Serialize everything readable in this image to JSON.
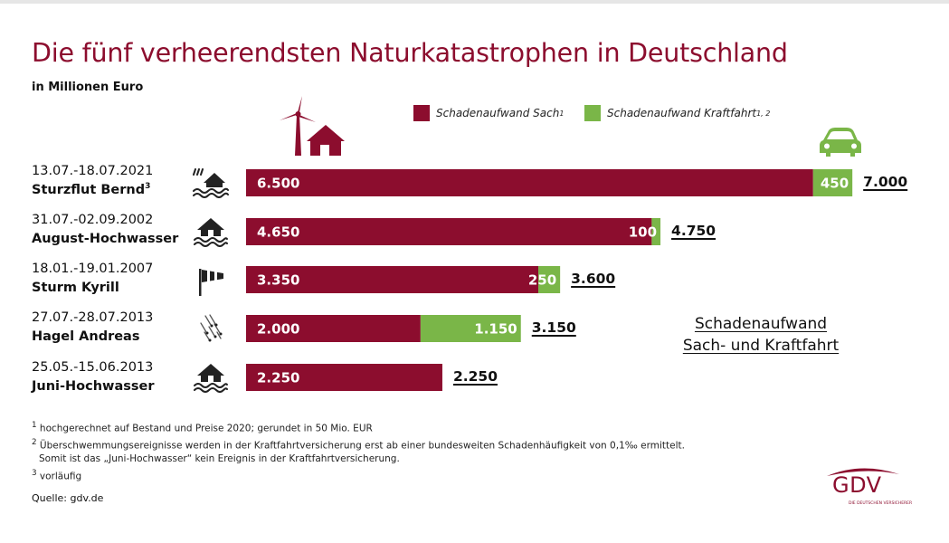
{
  "colors": {
    "sach": "#8c0d2e",
    "kraftfahrt": "#7ab648",
    "title": "#8c0d2e"
  },
  "header": {
    "title": "Die fünf verheerendsten Naturkatastrophen in Deutschland",
    "subtitle": "in Millionen Euro"
  },
  "legend": {
    "sach": {
      "label": "Schadenaufwand Sach",
      "sup": "1"
    },
    "kraftfahrt": {
      "label": "Schadenaufwand Kraftfahrt",
      "sup": "1, 2"
    }
  },
  "icons": {
    "sach_header": "wind-turbine-house-icon",
    "kraftfahrt_header": "car-icon"
  },
  "chart_data": {
    "type": "bar",
    "orientation": "horizontal",
    "stacked": true,
    "title": "Die fünf verheerendsten Naturkatastrophen in Deutschland",
    "unit": "in Millionen Euro",
    "categories": [
      "Sturzflut Bernd",
      "August-Hochwasser",
      "Sturm Kyrill",
      "Hagel Andreas",
      "Juni-Hochwasser"
    ],
    "series": [
      {
        "name": "Schadenaufwand Sach",
        "values": [
          6500,
          4650,
          3350,
          2000,
          2250
        ]
      },
      {
        "name": "Schadenaufwand Kraftfahrt",
        "values": [
          450,
          100,
          250,
          1150,
          0
        ]
      }
    ],
    "xlim": [
      0,
      7000
    ],
    "grid": false,
    "legend_position": "top-right"
  },
  "rows": [
    {
      "date": "13.07.-18.07.2021",
      "name": "Sturzflut Bernd",
      "sup": "3",
      "icon": "flood-storm-icon",
      "sach": 6500,
      "kfz": 450,
      "sach_label": "6.500",
      "kfz_label": "450",
      "total_label": "7.000"
    },
    {
      "date": "31.07.-02.09.2002",
      "name": "August-Hochwasser",
      "sup": "",
      "icon": "flooded-house-icon",
      "sach": 4650,
      "kfz": 100,
      "sach_label": "4.650",
      "kfz_label": "100",
      "total_label": "4.750"
    },
    {
      "date": "18.01.-19.01.2007",
      "name": "Sturm Kyrill",
      "sup": "",
      "icon": "windsock-icon",
      "sach": 3350,
      "kfz": 250,
      "sach_label": "3.350",
      "kfz_label": "250",
      "total_label": "3.600"
    },
    {
      "date": "27.07.-28.07.2013",
      "name": "Hagel Andreas",
      "sup": "",
      "icon": "hail-icon",
      "sach": 2000,
      "kfz": 1150,
      "sach_label": "2.000",
      "kfz_label": "1.150",
      "total_label": "3.150"
    },
    {
      "date": "25.05.-15.06.2013",
      "name": "Juni-Hochwasser",
      "sup": "",
      "icon": "flooded-house-icon",
      "sach": 2250,
      "kfz": 0,
      "sach_label": "2.250",
      "kfz_label": "",
      "total_label": "2.250"
    }
  ],
  "callout": {
    "line1": "Schadenaufwand",
    "line2": "Sach- und Kraftfahrt"
  },
  "footnotes": {
    "n1": {
      "mark": "1",
      "text": "hochgerechnet auf Bestand und Preise 2020; gerundet in 50 Mio. EUR"
    },
    "n2": {
      "mark": "2",
      "text": "Überschwemmungsereignisse werden in der Kraftfahrtversicherung erst ab einer bundesweiten Schadenhäufigkeit von 0,1‰ ermittelt."
    },
    "n2b": "Somit ist das „Juni-Hochwasser“ kein Ereignis in der Kraftfahrtversicherung.",
    "n3": {
      "mark": "3",
      "text": "vorläufig"
    }
  },
  "source": "Quelle: gdv.de",
  "logo": {
    "text": "GDV",
    "tagline": "DIE DEUTSCHEN VERSICHERER"
  }
}
